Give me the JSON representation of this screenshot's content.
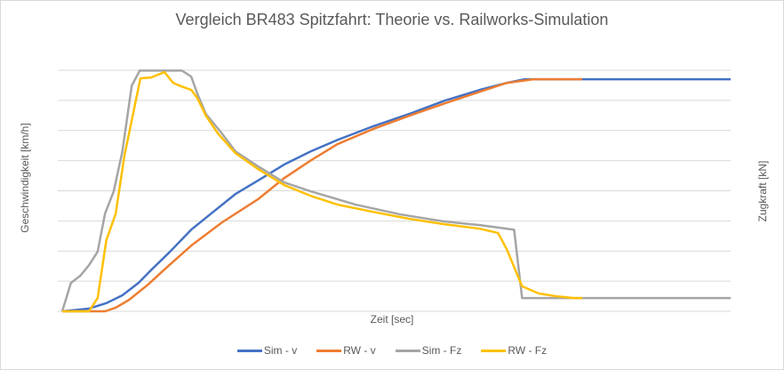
{
  "chart_data": {
    "type": "line",
    "title": "Vergleich BR483 Spitzfahrt: Theorie vs. Railworks-Simulation",
    "xlabel": "Zeit [sec]",
    "ylabel": "Geschwindigkeit [km/h]",
    "y2label": "Zugkraft  [kN]",
    "xlim": [
      0,
      100
    ],
    "ylim": [
      0,
      8
    ],
    "grid": true,
    "tick_labels_shown": false,
    "legend": "bottom",
    "series": [
      {
        "name": "Sim - v",
        "color": "#4472C4",
        "x": [
          0,
          4,
          6.6,
          9,
          11.4,
          13.4,
          16,
          19.3,
          22.6,
          25.9,
          29.3,
          33.2,
          37.2,
          41.2,
          46.5,
          51.9,
          57.2,
          62.5,
          66.5,
          69.1,
          100
        ],
        "y": [
          0,
          0.09,
          0.27,
          0.53,
          0.94,
          1.39,
          1.95,
          2.71,
          3.3,
          3.89,
          4.34,
          4.87,
          5.31,
          5.69,
          6.14,
          6.55,
          6.99,
          7.35,
          7.58,
          7.7,
          7.7
        ]
      },
      {
        "name": "RW - v",
        "color": "#ED7D31",
        "x": [
          0,
          6.4,
          8,
          10,
          12.8,
          16,
          19.3,
          23.9,
          29.3,
          33.2,
          37.2,
          41.2,
          46.5,
          51.9,
          57.2,
          62.5,
          66.5,
          70.5,
          77.8
        ],
        "y": [
          0,
          0,
          0.12,
          0.38,
          0.88,
          1.53,
          2.18,
          2.95,
          3.72,
          4.42,
          5.01,
          5.55,
          6.05,
          6.49,
          6.9,
          7.29,
          7.58,
          7.7,
          7.7
        ]
      },
      {
        "name": "Sim - Fz",
        "color": "#A5A5A5",
        "x": [
          0,
          1.3,
          2.7,
          4,
          5.3,
          6.4,
          7.7,
          9,
          10.4,
          11.6,
          17.9,
          19.3,
          20.2,
          21.5,
          23.9,
          25.9,
          29.3,
          33.2,
          37.2,
          43.9,
          50.5,
          57.2,
          62.5,
          67.6,
          68.8,
          100
        ],
        "y": [
          0,
          0.94,
          1.18,
          1.53,
          1.98,
          3.24,
          3.98,
          5.31,
          7.49,
          7.99,
          7.99,
          7.79,
          7.23,
          6.55,
          5.9,
          5.31,
          4.81,
          4.28,
          3.98,
          3.54,
          3.22,
          2.98,
          2.86,
          2.71,
          0.44,
          0.44
        ]
      },
      {
        "name": "RW - Fz",
        "color": "#FFC000",
        "x": [
          0,
          4,
          5.3,
          6.6,
          8,
          9.3,
          11.7,
          13.3,
          15.3,
          16.6,
          17.9,
          19.3,
          20.2,
          21.5,
          23.3,
          25.9,
          29.3,
          33.2,
          37.2,
          41.2,
          46.5,
          51.9,
          57.2,
          62.5,
          65.2,
          66.5,
          68.8,
          71.3,
          73.9,
          76.6,
          77.8
        ],
        "y": [
          0,
          0,
          0.44,
          2.36,
          3.24,
          5.16,
          7.73,
          7.76,
          7.94,
          7.58,
          7.46,
          7.35,
          7.08,
          6.49,
          5.9,
          5.25,
          4.72,
          4.19,
          3.83,
          3.54,
          3.3,
          3.07,
          2.89,
          2.74,
          2.6,
          2.06,
          0.83,
          0.59,
          0.5,
          0.44,
          0.44
        ]
      }
    ]
  }
}
